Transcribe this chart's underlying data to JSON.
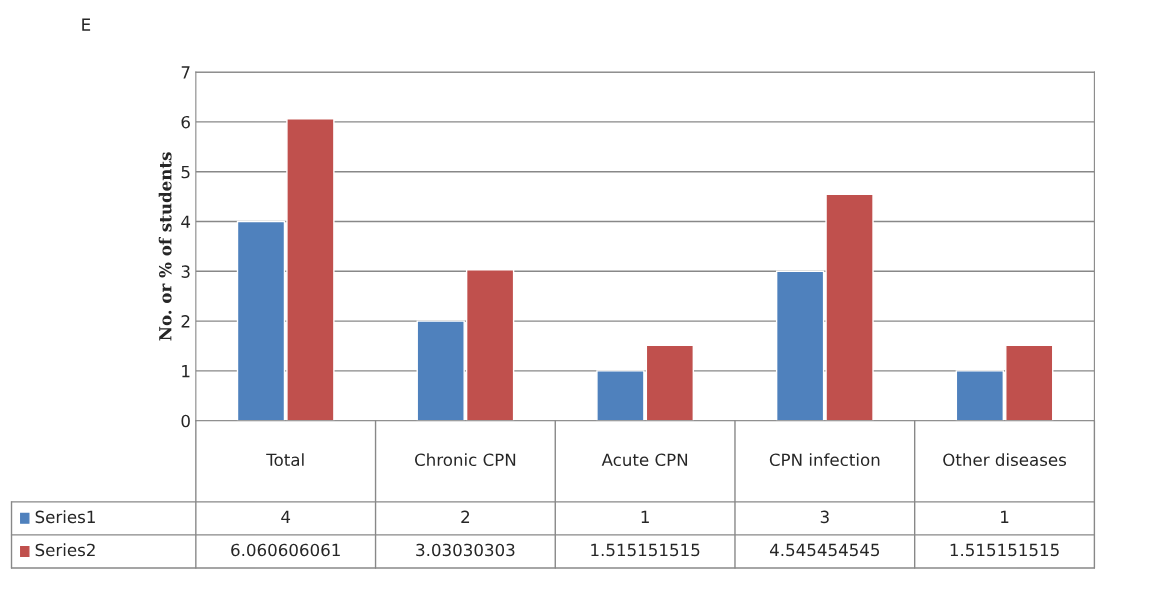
{
  "chart_data": {
    "type": "bar",
    "title": "E",
    "ylabel": "No. or % of students",
    "categories": [
      "Total",
      "Chronic CPN",
      "Acute CPN",
      "CPN infection",
      "Other diseases"
    ],
    "series": [
      {
        "name": "Series1",
        "color": "#4f81bd",
        "values": [
          4,
          2,
          1,
          3,
          1
        ],
        "value_labels": [
          "4",
          "2",
          "1",
          "3",
          "1"
        ]
      },
      {
        "name": "Series2",
        "color": "#c0504d",
        "values": [
          6.060606061,
          3.03030303,
          1.515151515,
          4.545454545,
          1.515151515
        ],
        "value_labels": [
          "6.060606061",
          "3.03030303",
          "1.515151515",
          "4.545454545",
          "1.515151515"
        ]
      }
    ],
    "ylim": [
      0,
      7
    ],
    "yticks": [
      0,
      1,
      2,
      3,
      4,
      5,
      6,
      7
    ],
    "grid": "y",
    "legend": "bottom"
  }
}
